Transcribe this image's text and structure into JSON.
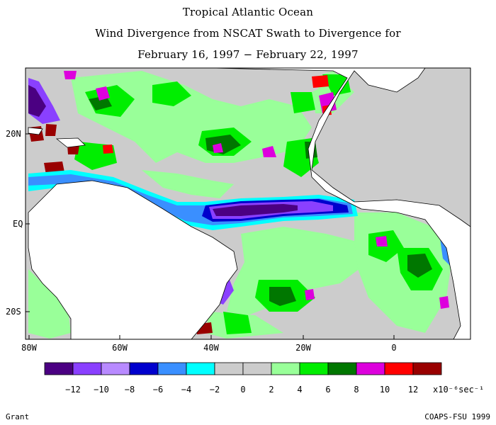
{
  "title": {
    "line1": "Tropical Atlantic Ocean",
    "line2": "Wind Divergence from NSCAT Swath to Divergence for",
    "line3": "February 16, 1997 − February 22, 1997"
  },
  "axes": {
    "lat_labels": [
      "20N",
      "EQ",
      "20S"
    ],
    "lon_labels": [
      "80W",
      "60W",
      "40W",
      "20W",
      "0"
    ]
  },
  "legend": {
    "colors": [
      "#4b0082",
      "#8a40ff",
      "#b88aff",
      "#0000cd",
      "#3a8fff",
      "#00ffff",
      "#cccccc",
      "#cccccc",
      "#99ff99",
      "#00ee00",
      "#007700",
      "#dd00dd",
      "#ff0000",
      "#990000"
    ],
    "tick_labels": [
      "−12",
      "−10",
      "−8",
      "−6",
      "−4",
      "−2",
      "0",
      "2",
      "4",
      "6",
      "8",
      "10",
      "12"
    ],
    "units": "x10⁻⁶sec⁻¹"
  },
  "footer": {
    "left": "Grant",
    "right": "COAPS-FSU 1999"
  },
  "colors": {
    "land": "#ffffff",
    "ocean_neutral": "#cccccc"
  }
}
